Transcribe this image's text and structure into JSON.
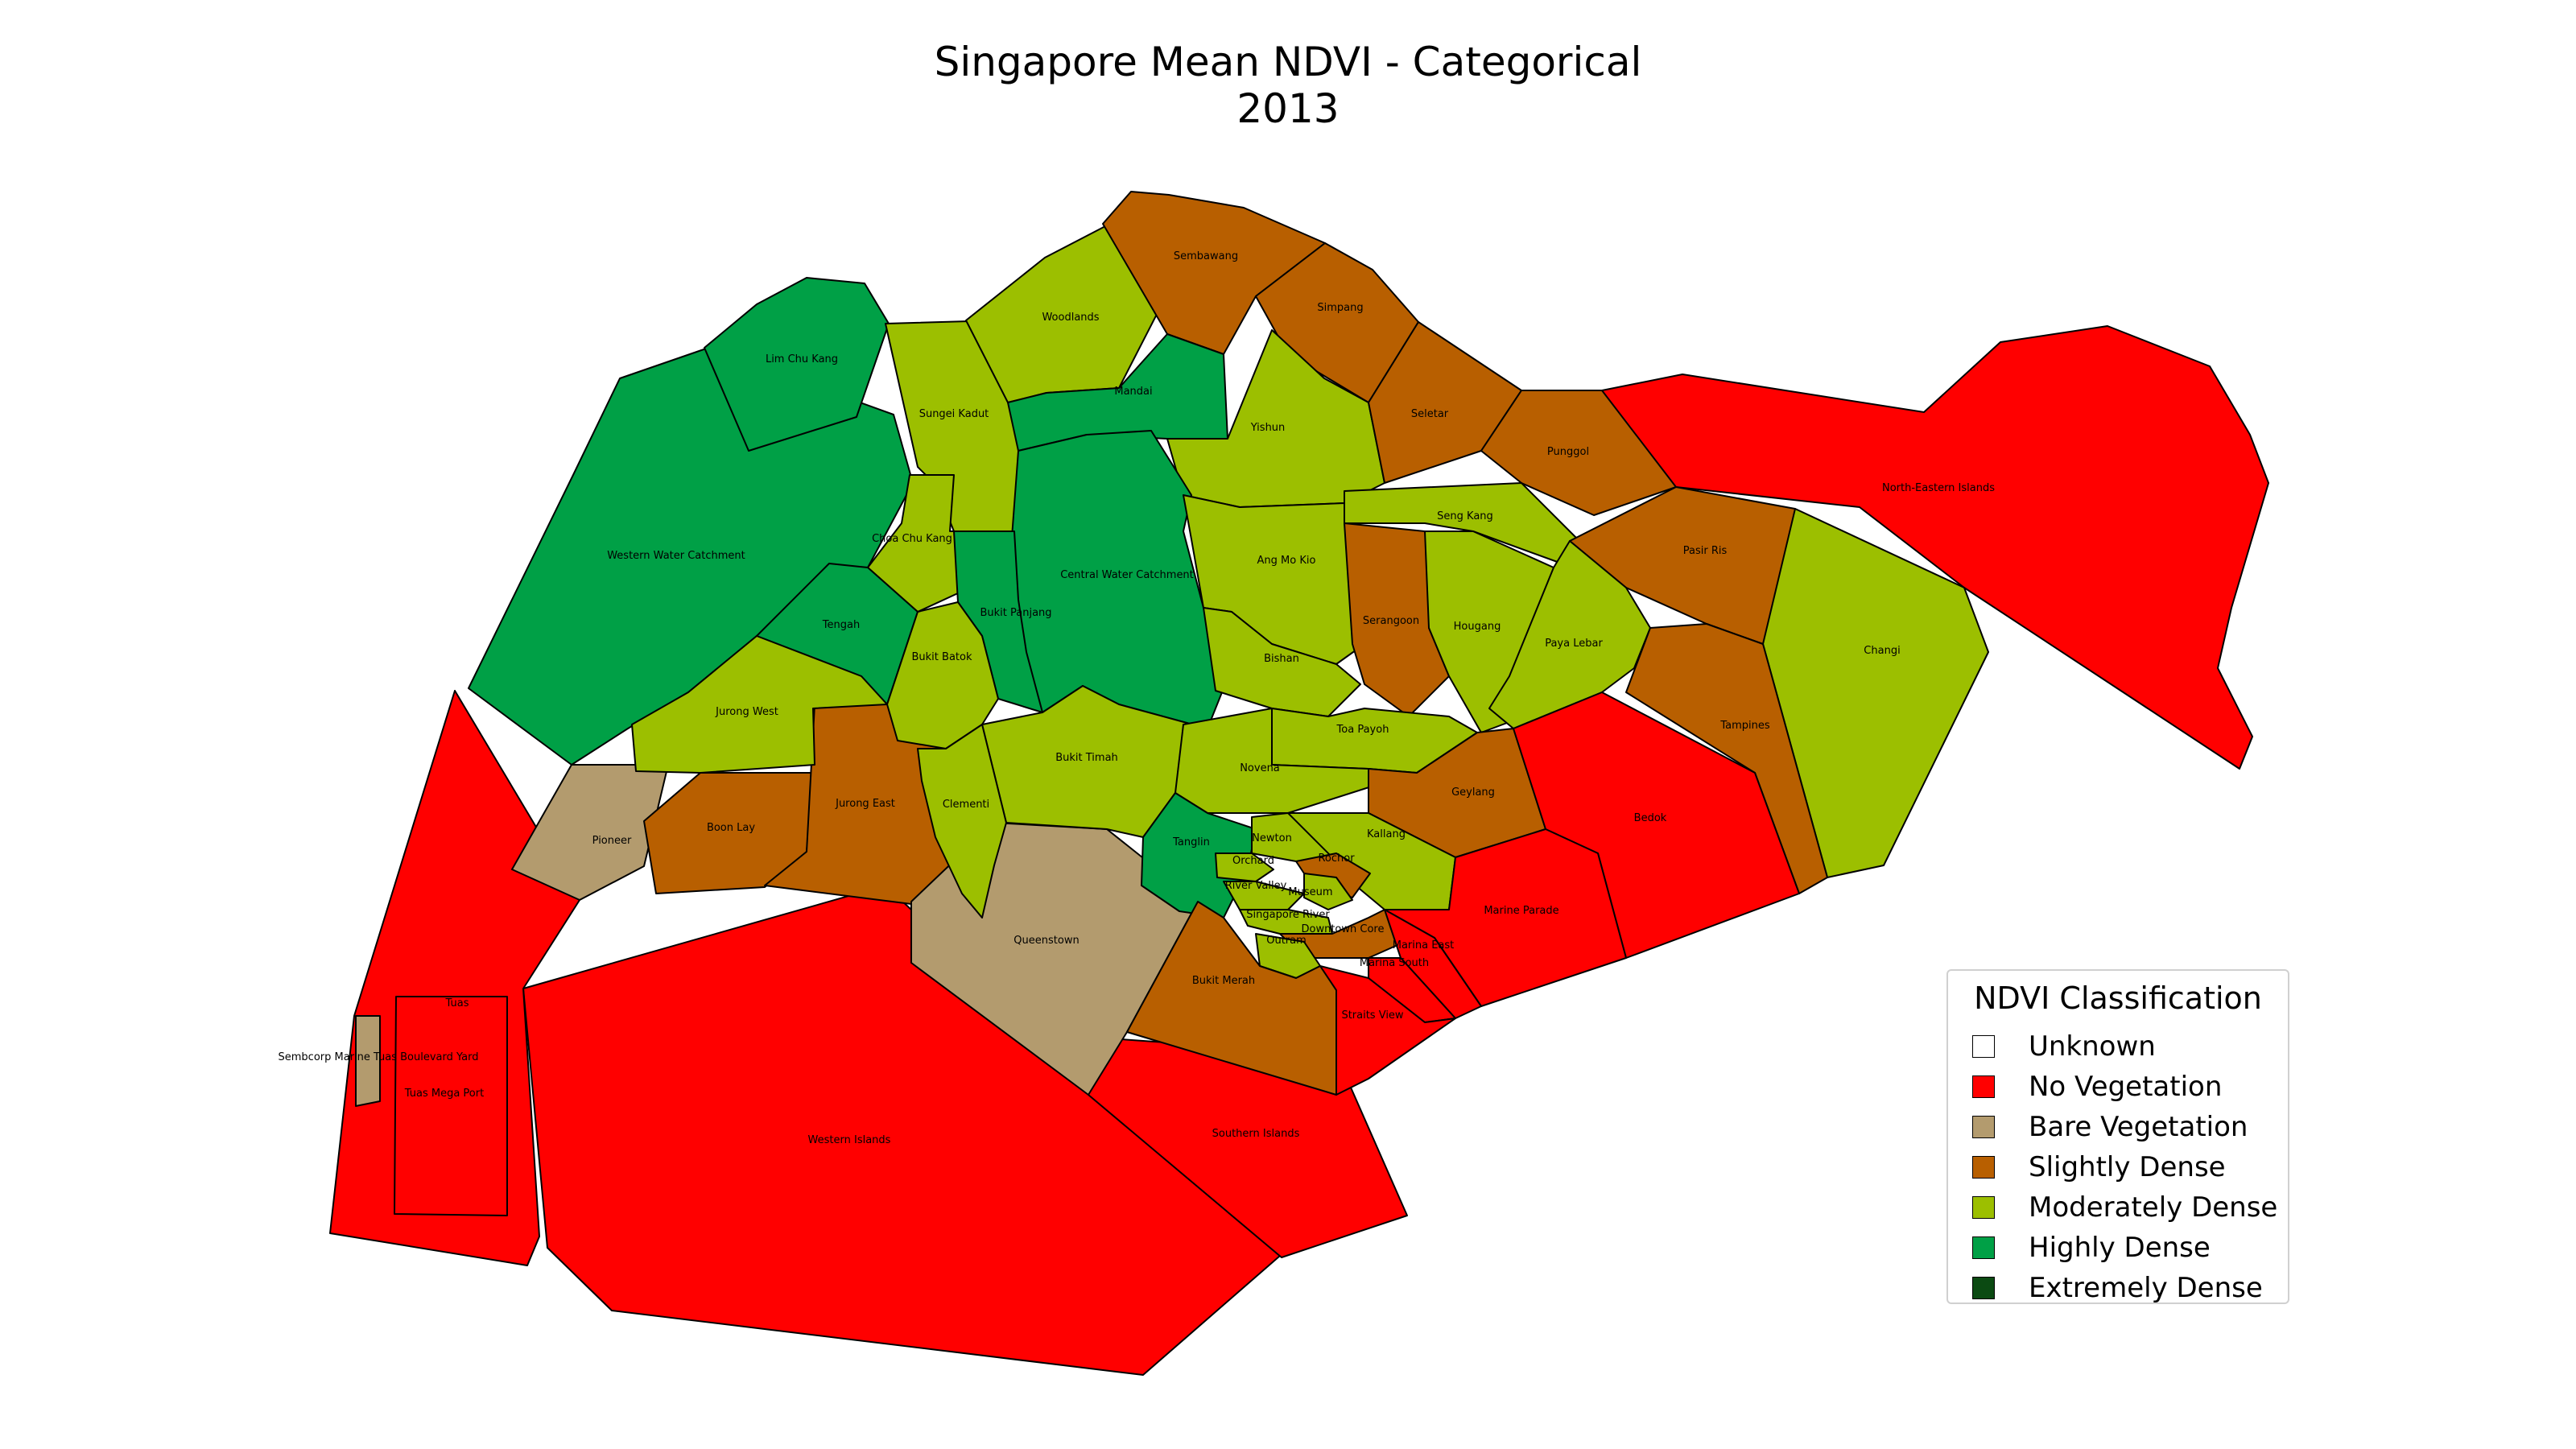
{
  "title": {
    "line1": "Singapore Mean NDVI - Categorical",
    "line2": "2013"
  },
  "legend": {
    "title": "NDVI Classification",
    "items": [
      {
        "label": "Unknown",
        "color": "#ffffff"
      },
      {
        "label": "No Vegetation",
        "color": "#ff0000"
      },
      {
        "label": "Bare Vegetation",
        "color": "#b39b6e"
      },
      {
        "label": "Slightly Dense",
        "color": "#b85f00"
      },
      {
        "label": "Moderately Dense",
        "color": "#9cbf00"
      },
      {
        "label": "Highly Dense",
        "color": "#00a046"
      },
      {
        "label": "Extremely Dense",
        "color": "#0b4a12"
      }
    ]
  },
  "regions": [
    {
      "name": "Western Islands",
      "category": "No Vegetation"
    },
    {
      "name": "Southern Islands",
      "category": "No Vegetation"
    },
    {
      "name": "Tuas",
      "category": "No Vegetation"
    },
    {
      "name": "Sembcorp Marine Tuas Boulevard Yard",
      "category": "Bare Vegetation"
    },
    {
      "name": "Tuas Mega Port",
      "category": "No Vegetation"
    },
    {
      "name": "Pioneer",
      "category": "Bare Vegetation"
    },
    {
      "name": "Boon Lay",
      "category": "Slightly Dense"
    },
    {
      "name": "Jurong East",
      "category": "Slightly Dense"
    },
    {
      "name": "Queenstown",
      "category": "Bare Vegetation"
    },
    {
      "name": "Western Water Catchment",
      "category": "Highly Dense"
    },
    {
      "name": "Lim Chu Kang",
      "category": "Highly Dense"
    },
    {
      "name": "Sungei Kadut",
      "category": "Moderately Dense"
    },
    {
      "name": "Woodlands",
      "category": "Moderately Dense"
    },
    {
      "name": "Sembawang",
      "category": "Slightly Dense"
    },
    {
      "name": "Simpang",
      "category": "Slightly Dense"
    },
    {
      "name": "Mandai",
      "category": "Highly Dense"
    },
    {
      "name": "Yishun",
      "category": "Moderately Dense"
    },
    {
      "name": "Seletar",
      "category": "Slightly Dense"
    },
    {
      "name": "Punggol",
      "category": "Slightly Dense"
    },
    {
      "name": "North-Eastern Islands",
      "category": "No Vegetation"
    },
    {
      "name": "Seng Kang",
      "category": "Moderately Dense"
    },
    {
      "name": "Pasir Ris",
      "category": "Slightly Dense"
    },
    {
      "name": "Changi",
      "category": "Moderately Dense"
    },
    {
      "name": "Choa Chu Kang",
      "category": "Moderately Dense"
    },
    {
      "name": "Central Water Catchment",
      "category": "Highly Dense"
    },
    {
      "name": "Ang Mo Kio",
      "category": "Moderately Dense"
    },
    {
      "name": "Tengah",
      "category": "Highly Dense"
    },
    {
      "name": "Bukit Panjang",
      "category": "Highly Dense"
    },
    {
      "name": "Serangoon",
      "category": "Slightly Dense"
    },
    {
      "name": "Hougang",
      "category": "Moderately Dense"
    },
    {
      "name": "Paya Lebar",
      "category": "Moderately Dense"
    },
    {
      "name": "Bukit Batok",
      "category": "Moderately Dense"
    },
    {
      "name": "Bishan",
      "category": "Moderately Dense"
    },
    {
      "name": "Tampines",
      "category": "Slightly Dense"
    },
    {
      "name": "Jurong West",
      "category": "Moderately Dense"
    },
    {
      "name": "Toa Payoh",
      "category": "Moderately Dense"
    },
    {
      "name": "Bukit Timah",
      "category": "Moderately Dense"
    },
    {
      "name": "Novena",
      "category": "Moderately Dense"
    },
    {
      "name": "Geylang",
      "category": "Slightly Dense"
    },
    {
      "name": "Bedok",
      "category": "No Vegetation"
    },
    {
      "name": "Clementi",
      "category": "Moderately Dense"
    },
    {
      "name": "Kallang",
      "category": "Moderately Dense"
    },
    {
      "name": "Tanglin",
      "category": "Highly Dense"
    },
    {
      "name": "Newton",
      "category": "Moderately Dense"
    },
    {
      "name": "Orchard",
      "category": "Moderately Dense"
    },
    {
      "name": "Rochor",
      "category": "Slightly Dense"
    },
    {
      "name": "River Valley",
      "category": "Moderately Dense"
    },
    {
      "name": "Museum",
      "category": "Moderately Dense"
    },
    {
      "name": "Singapore River",
      "category": "Moderately Dense"
    },
    {
      "name": "Marine Parade",
      "category": "No Vegetation"
    },
    {
      "name": "Downtown Core",
      "category": "Slightly Dense"
    },
    {
      "name": "Outram",
      "category": "Moderately Dense"
    },
    {
      "name": "Marina East",
      "category": "No Vegetation"
    },
    {
      "name": "Marina South",
      "category": "No Vegetation"
    },
    {
      "name": "Bukit Merah",
      "category": "Slightly Dense"
    },
    {
      "name": "Straits View",
      "category": "No Vegetation"
    }
  ]
}
